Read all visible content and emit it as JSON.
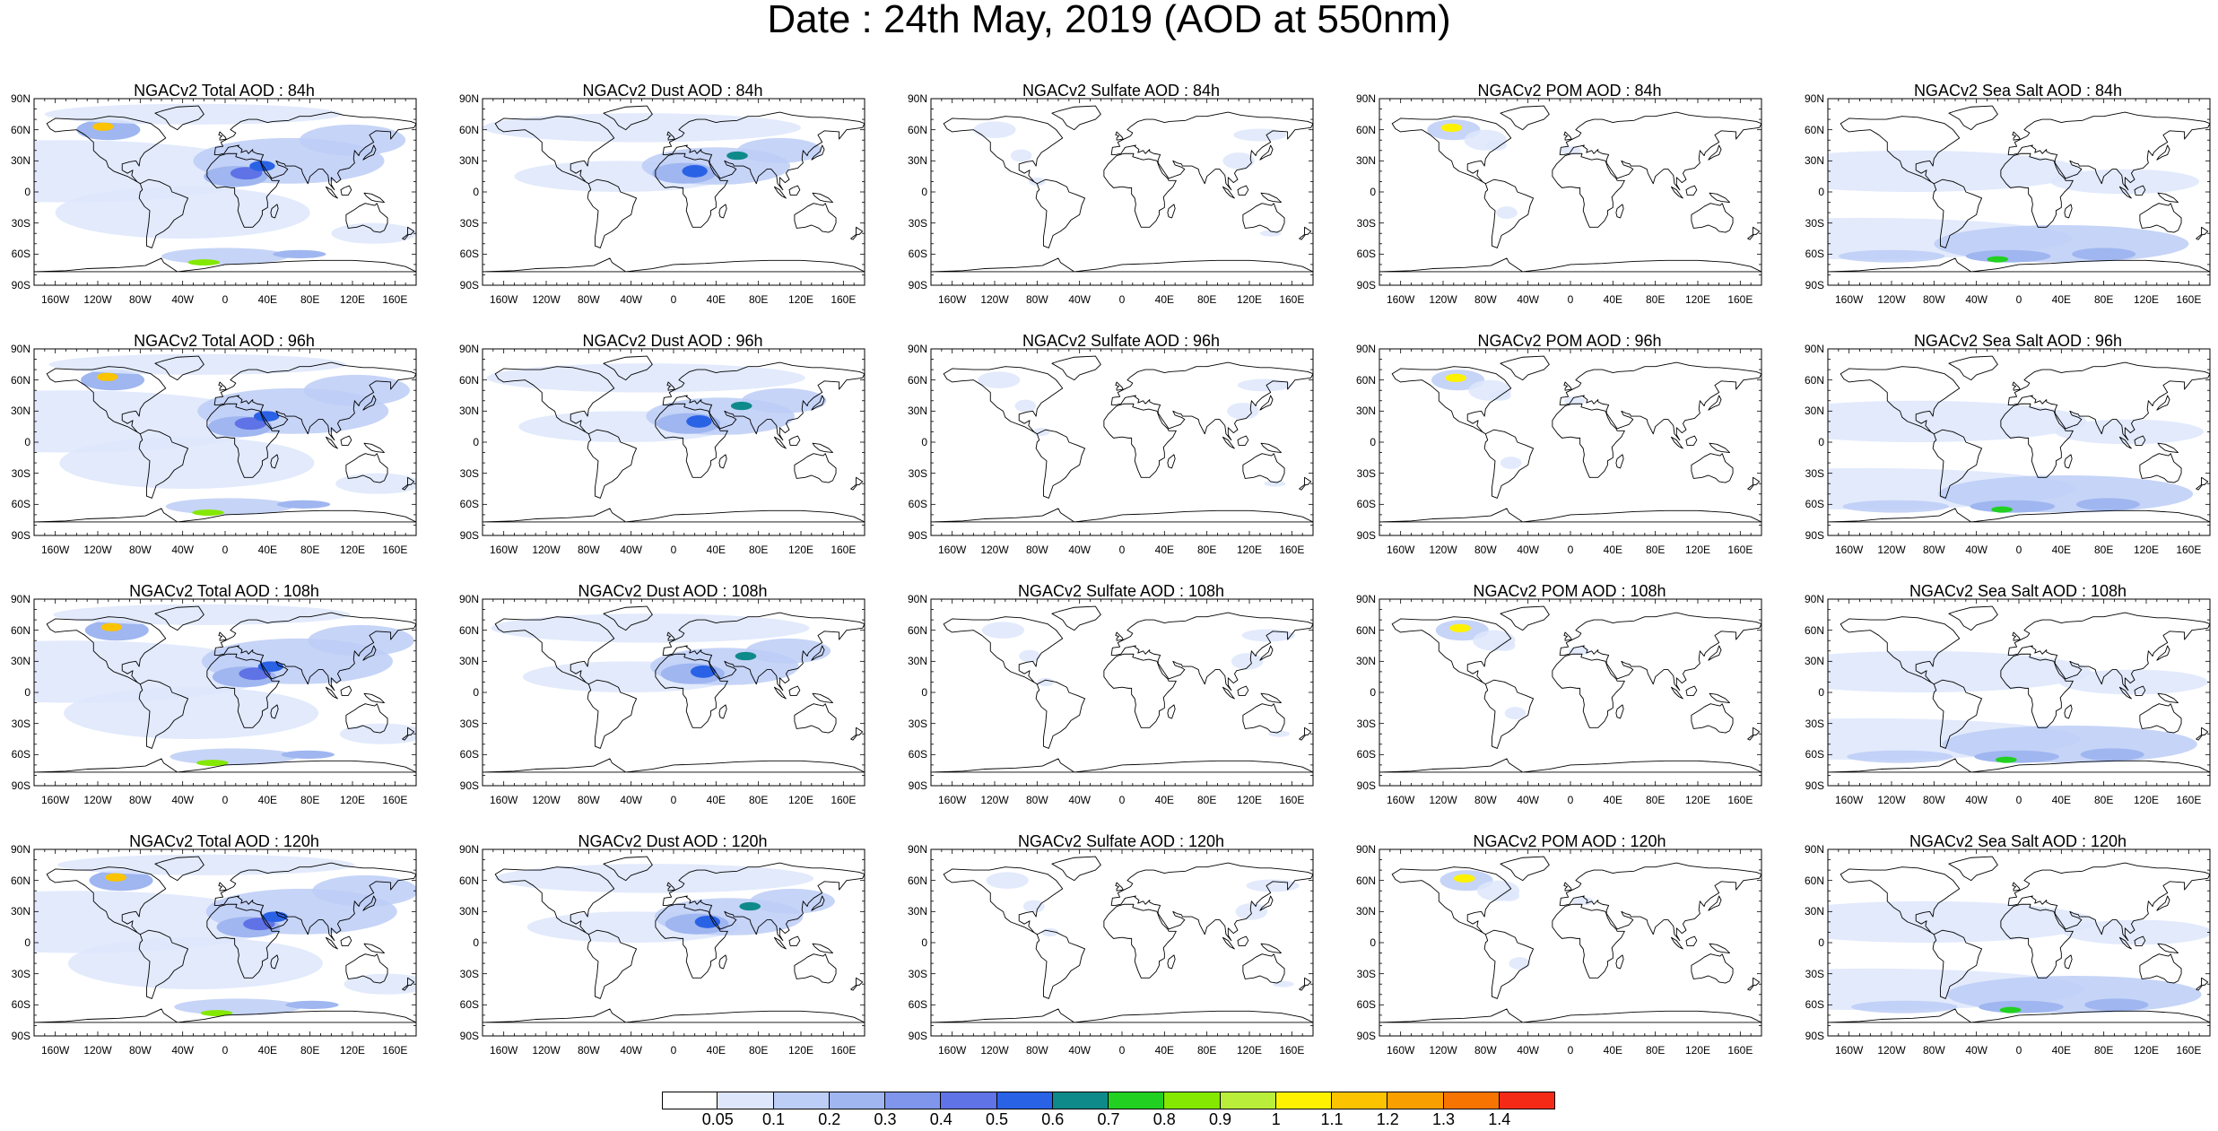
{
  "title": "Date : 24th May, 2019 (AOD at 550nm)",
  "lat_ticks": [
    "90N",
    "60N",
    "30N",
    "0",
    "30S",
    "60S",
    "90S"
  ],
  "lon_ticks": [
    "160W",
    "120W",
    "80W",
    "40W",
    "0",
    "40E",
    "80E",
    "120E",
    "160E"
  ],
  "rows": [
    {
      "lead": "84h",
      "panels": [
        "NGACv2 Total AOD : 84h",
        "NGACv2 Dust AOD : 84h",
        "NGACv2 Sulfate AOD : 84h",
        "NGACv2 POM AOD : 84h",
        "NGACv2 Sea Salt AOD : 84h"
      ]
    },
    {
      "lead": "96h",
      "panels": [
        "NGACv2 Total AOD : 96h",
        "NGACv2 Dust AOD : 96h",
        "NGACv2 Sulfate AOD : 96h",
        "NGACv2 POM AOD : 96h",
        "NGACv2 Sea Salt AOD : 96h"
      ]
    },
    {
      "lead": "108h",
      "panels": [
        "NGACv2 Total AOD : 108h",
        "NGACv2 Dust AOD : 108h",
        "NGACv2 Sulfate AOD : 108h",
        "NGACv2 POM AOD : 108h",
        "NGACv2 Sea Salt AOD : 108h"
      ]
    },
    {
      "lead": "120h",
      "panels": [
        "NGACv2 Total AOD : 120h",
        "NGACv2 Dust AOD : 120h",
        "NGACv2 Sulfate AOD : 120h",
        "NGACv2 POM AOD : 120h",
        "NGACv2 Sea Salt  AOD : 120h"
      ]
    }
  ],
  "variables": [
    "total",
    "dust",
    "sulfate",
    "pom",
    "seasalt"
  ],
  "colorbar": {
    "labels": [
      "0.05",
      "0.1",
      "0.2",
      "0.3",
      "0.4",
      "0.5",
      "0.6",
      "0.7",
      "0.8",
      "0.9",
      "1",
      "1.1",
      "1.2",
      "1.3",
      "1.4"
    ],
    "colors": [
      "#ffffff",
      "#dde6fb",
      "#bccdf6",
      "#9fb6f0",
      "#8096ec",
      "#5f72e6",
      "#2a62e6",
      "#0f8a8a",
      "#22d022",
      "#84e800",
      "#b9ee3a",
      "#fff200",
      "#fcc300",
      "#f9a000",
      "#f77400",
      "#f52a16"
    ]
  },
  "land_color": "#000000",
  "ocean_background": "#ffffff"
}
